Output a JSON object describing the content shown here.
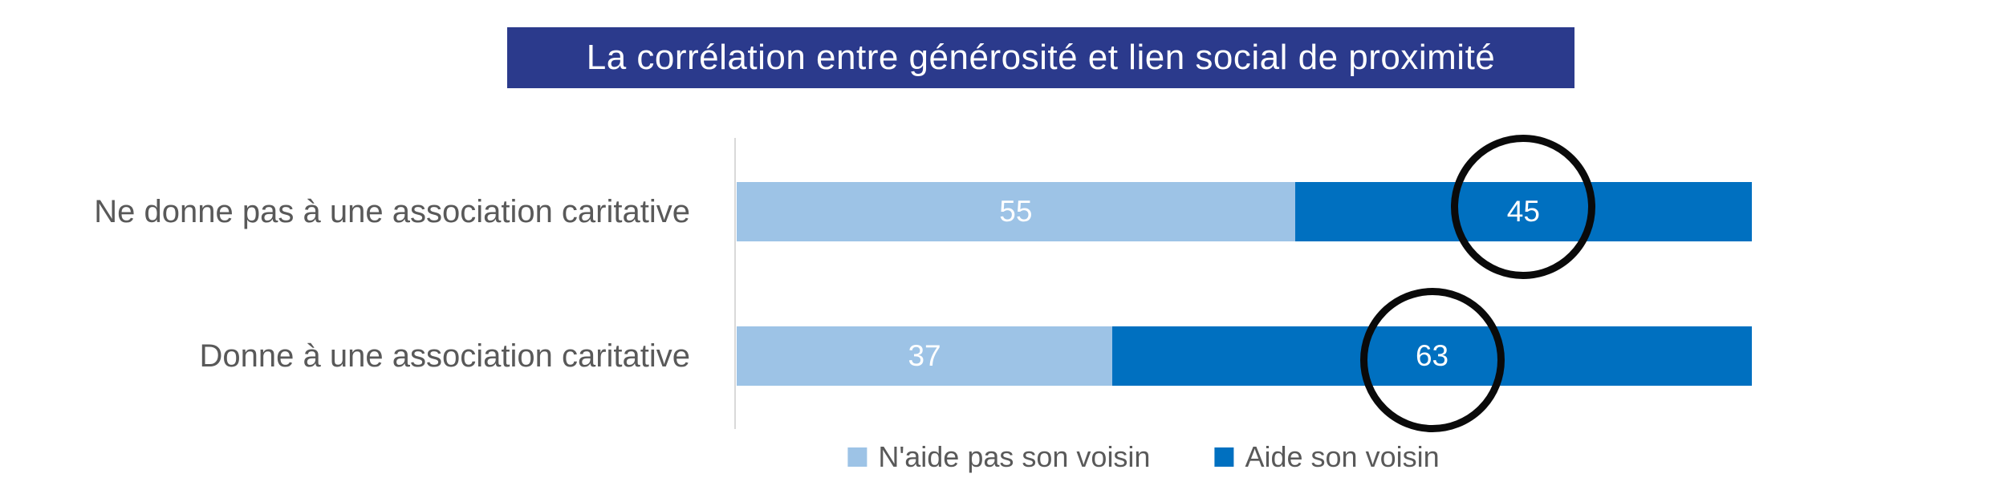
{
  "title": {
    "text": "La corrélation entre générosité et lien social de proximité",
    "bg_color": "#2B3A8C",
    "text_color": "#FFFFFF"
  },
  "chart_data": {
    "type": "bar",
    "orientation": "horizontal",
    "stacked": true,
    "title": "La corrélation entre générosité et lien social de proximité",
    "categories": [
      "Ne donne pas à une association caritative",
      "Donne à une association caritative"
    ],
    "series": [
      {
        "name": "N'aide pas son voisin",
        "color": "#9DC3E6",
        "values": [
          55,
          37
        ]
      },
      {
        "name": "Aide son voisin",
        "color": "#0070C0",
        "values": [
          45,
          63
        ]
      }
    ],
    "xlim": [
      0,
      100
    ],
    "grid": false,
    "legend_position": "bottom",
    "value_labels": "inside-center",
    "value_label_color": "#FFFFFF",
    "annotations": [
      {
        "type": "circle",
        "row": 0,
        "series": "Aide son voisin",
        "highlighted_value": 45,
        "color": "#0A0A0A"
      },
      {
        "type": "circle",
        "row": 1,
        "series": "Aide son voisin",
        "highlighted_value": 63,
        "color": "#0A0A0A"
      }
    ],
    "axis_line_color": "#D9D9D9",
    "category_label_color": "#595959"
  },
  "legend": {
    "items": [
      {
        "label": "N'aide pas son voisin",
        "color": "#9DC3E6"
      },
      {
        "label": "Aide son voisin",
        "color": "#0070C0"
      }
    ]
  }
}
